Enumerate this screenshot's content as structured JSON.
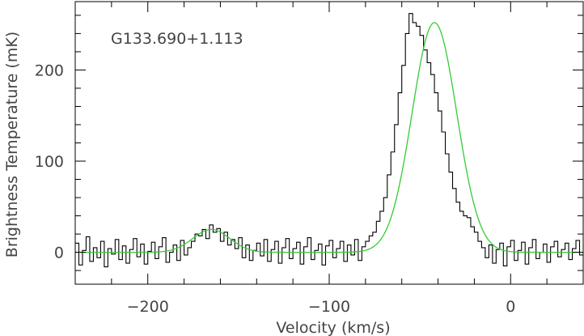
{
  "chart_data": {
    "type": "line",
    "annotation": "G133.690+1.113",
    "xlabel": "Velocity (km/s)",
    "ylabel": "Brightness Temperature (mK)",
    "xlim": [
      -240,
      40
    ],
    "ylim": [
      -35,
      275
    ],
    "x_ticks": [
      -200,
      -100,
      0
    ],
    "y_ticks": [
      0,
      100,
      200
    ],
    "grid": false,
    "legend": "none",
    "series": [
      {
        "style": "histogram",
        "color": "#000000",
        "x": [
          -240,
          -238,
          -236,
          -234,
          -232,
          -230,
          -228,
          -226,
          -224,
          -222,
          -220,
          -218,
          -216,
          -214,
          -212,
          -210,
          -208,
          -206,
          -204,
          -202,
          -200,
          -198,
          -196,
          -194,
          -192,
          -190,
          -188,
          -186,
          -184,
          -182,
          -180,
          -178,
          -176,
          -174,
          -172,
          -170,
          -168,
          -166,
          -164,
          -162,
          -160,
          -158,
          -156,
          -154,
          -152,
          -150,
          -148,
          -146,
          -144,
          -142,
          -140,
          -138,
          -136,
          -134,
          -132,
          -130,
          -128,
          -126,
          -124,
          -122,
          -120,
          -118,
          -116,
          -114,
          -112,
          -110,
          -108,
          -106,
          -104,
          -102,
          -100,
          -98,
          -96,
          -94,
          -92,
          -90,
          -88,
          -86,
          -84,
          -82,
          -80,
          -78,
          -76,
          -74,
          -72,
          -70,
          -68,
          -66,
          -64,
          -62,
          -60,
          -58,
          -56,
          -54,
          -52,
          -50,
          -48,
          -46,
          -44,
          -42,
          -40,
          -38,
          -36,
          -34,
          -32,
          -30,
          -28,
          -26,
          -24,
          -22,
          -20,
          -18,
          -16,
          -14,
          -12,
          -10,
          -8,
          -6,
          -4,
          -2,
          0,
          2,
          4,
          6,
          8,
          10,
          12,
          14,
          16,
          18,
          20,
          22,
          24,
          26,
          28,
          30,
          32,
          34,
          36,
          38
        ],
        "y": [
          10,
          -14,
          2,
          17,
          -10,
          5,
          -6,
          12,
          -16,
          4,
          -2,
          14,
          -8,
          7,
          -12,
          3,
          15,
          -5,
          9,
          -13,
          1,
          11,
          -7,
          6,
          16,
          -11,
          0,
          8,
          -9,
          13,
          -3,
          5,
          12,
          20,
          18,
          25,
          15,
          30,
          22,
          26,
          12,
          22,
          8,
          14,
          4,
          16,
          -6,
          8,
          -9,
          2,
          10,
          -4,
          14,
          -10,
          3,
          12,
          -12,
          5,
          15,
          -7,
          4,
          11,
          -13,
          6,
          16,
          -8,
          2,
          9,
          -14,
          7,
          13,
          -6,
          4,
          12,
          -10,
          8,
          -3,
          14,
          -9,
          6,
          12,
          18,
          22,
          34,
          45,
          60,
          85,
          110,
          140,
          175,
          205,
          240,
          262,
          252,
          248,
          238,
          222,
          208,
          195,
          175,
          155,
          132,
          108,
          88,
          70,
          55,
          45,
          40,
          38,
          28,
          22,
          12,
          5,
          -6,
          8,
          -12,
          3,
          10,
          -15,
          6,
          13,
          -9,
          2,
          11,
          -13,
          5,
          14,
          -7,
          0,
          9,
          -11,
          6,
          12,
          -5,
          3,
          10,
          -8,
          4,
          13,
          -3
        ]
      },
      {
        "style": "fit",
        "color": "#33cc33",
        "components": [
          {
            "center": -42,
            "amplitude": 252,
            "fwhm": 29
          },
          {
            "center": -165,
            "amplitude": 25,
            "fwhm": 24
          }
        ]
      }
    ]
  }
}
